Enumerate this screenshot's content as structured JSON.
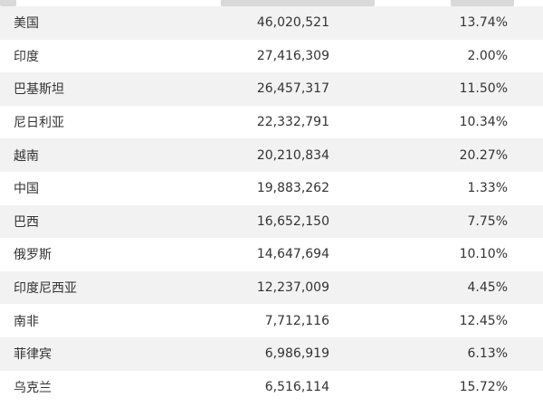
{
  "rows": [
    {
      "country": "美国",
      "cases": "46,020,521",
      "pct": "13.74%"
    },
    {
      "country": "印度",
      "cases": "27,416,309",
      "pct": "2.00%"
    },
    {
      "country": "巴基斯坦",
      "cases": "26,457,317",
      "pct": "11.50%"
    },
    {
      "country": "尼日利亚",
      "cases": "22,332,791",
      "pct": "10.34%"
    },
    {
      "country": "越南",
      "cases": "20,210,834",
      "pct": "20.27%"
    },
    {
      "country": "中国",
      "cases": "19,883,262",
      "pct": "1.33%"
    },
    {
      "country": "巴西",
      "cases": "16,652,150",
      "pct": "7.75%"
    },
    {
      "country": "俄罗斯",
      "cases": "14,647,694",
      "pct": "10.10%"
    },
    {
      "country": "印度尼西亚",
      "cases": "12,237,009",
      "pct": "4.45%"
    },
    {
      "country": "南非",
      "cases": "7,712,116",
      "pct": "12.45%"
    },
    {
      "country": "菲律宾",
      "cases": "6,986,919",
      "pct": "6.13%"
    },
    {
      "country": "乌克兰",
      "cases": "6,516,114",
      "pct": "15.72%"
    }
  ]
}
